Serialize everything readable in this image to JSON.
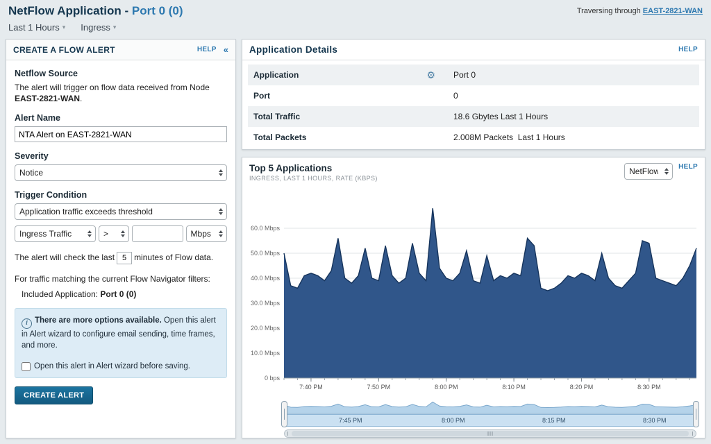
{
  "page": {
    "title_prefix": "NetFlow Application -",
    "title_link": "Port 0 (0)",
    "time_range": "Last 1 Hours",
    "direction": "Ingress",
    "traversing_label": "Traversing through ",
    "traversing_link": "EAST-2821-WAN"
  },
  "colors": {
    "link_blue": "#2e79b0",
    "title_navy": "#15374f",
    "button_blue": "#135a80",
    "info_box_bg": "#ddecf6",
    "chart_fill": "#30568a",
    "chart_line": "#16345c",
    "brush_fill": "#b5d3ea",
    "stripe_gray": "#eef1f3"
  },
  "alert_panel": {
    "header": "CREATE A FLOW ALERT",
    "help": "HELP",
    "collapse_icon": "«",
    "source_heading": "Netflow Source",
    "source_text": "The alert will trigger on flow data received from Node",
    "source_node": "EAST-2821-WAN",
    "source_period": ".",
    "alert_name_label": "Alert Name",
    "alert_name_value": "NTA Alert on EAST-2821-WAN",
    "severity_label": "Severity",
    "severity_value": "Notice",
    "trigger_label": "Trigger Condition",
    "trigger_condition_value": "Application traffic exceeds threshold",
    "traffic_type_value": "Ingress Traffic",
    "operator_value": ">",
    "threshold_value": "",
    "unit_value": "Mbps",
    "check_text_before": "The alert will check the last",
    "check_minutes": "5",
    "check_text_after": "minutes of Flow data.",
    "filters_text": "For traffic matching the current Flow Navigator filters:",
    "included_label": "Included Application: ",
    "included_value": "Port 0 (0)",
    "info_bold": "There are more options available.",
    "info_text": " Open this alert in Alert wizard to configure email sending, time frames, and more.",
    "wizard_checkbox_label": "Open this alert in Alert wizard before saving.",
    "create_button": "CREATE ALERT"
  },
  "details": {
    "title": "Application Details",
    "help": "HELP",
    "rows": [
      {
        "label": "Application",
        "value": "Port 0"
      },
      {
        "label": "Port",
        "value": "0"
      },
      {
        "label": "Total Traffic",
        "value": "18.6 Gbytes Last 1 Hours"
      },
      {
        "label": "Total Packets",
        "value": "2.008M Packets  Last 1 Hours"
      }
    ]
  },
  "top_apps": {
    "title": "Top 5 Applications",
    "subtitle": "INGRESS, LAST 1 HOURS, RATE (KBPS)",
    "selector_value": "NetFlow",
    "help": "HELP",
    "brush_labels": [
      "7:45 PM",
      "8:00 PM",
      "8:15 PM",
      "8:30 PM"
    ]
  },
  "chart_data": {
    "type": "area",
    "title": "Top 5 Applications",
    "subtitle": "INGRESS, LAST 1 HOURS, RATE (KBPS)",
    "grid": "horizontal",
    "legend_position": "none",
    "ylim": [
      0,
      70
    ],
    "y_unit": "Mbps",
    "y_ticks": [
      {
        "value": 0,
        "label": "0 bps"
      },
      {
        "value": 10,
        "label": "10.0 Mbps"
      },
      {
        "value": 20,
        "label": "20.0 Mbps"
      },
      {
        "value": 30,
        "label": "30.0 Mbps"
      },
      {
        "value": 40,
        "label": "40.0 Mbps"
      },
      {
        "value": 50,
        "label": "50.0 Mbps"
      },
      {
        "value": 60,
        "label": "60.0 Mbps"
      }
    ],
    "x_start": "7:36 PM",
    "x_end": "8:37 PM",
    "x_minutes_total": 61,
    "x_ticks": [
      {
        "minute": 4,
        "label": "7:40 PM"
      },
      {
        "minute": 14,
        "label": "7:50 PM"
      },
      {
        "minute": 24,
        "label": "8:00 PM"
      },
      {
        "minute": 34,
        "label": "8:10 PM"
      },
      {
        "minute": 44,
        "label": "8:20 PM"
      },
      {
        "minute": 54,
        "label": "8:30 PM"
      }
    ],
    "series": [
      {
        "name": "Port 0",
        "unit": "Mbps",
        "interval_minutes": 1,
        "values": [
          50,
          37,
          36,
          41,
          42,
          41,
          39,
          43,
          56,
          40,
          38,
          41,
          52,
          40,
          39,
          53,
          41,
          38,
          40,
          54,
          42,
          39,
          68,
          44,
          40,
          39,
          42,
          51,
          39,
          38,
          49,
          39,
          41,
          40,
          42,
          41,
          56,
          53,
          36,
          35,
          36,
          38,
          41,
          40,
          42,
          41,
          39,
          50,
          40,
          37,
          36,
          39,
          42,
          55,
          54,
          40,
          39,
          38,
          37,
          40,
          45,
          52
        ]
      }
    ],
    "colors": {
      "fill": "#30568a",
      "line": "#16345c",
      "brush_fill": "#b5d3ea",
      "brush_line": "#7aa7cc"
    }
  }
}
